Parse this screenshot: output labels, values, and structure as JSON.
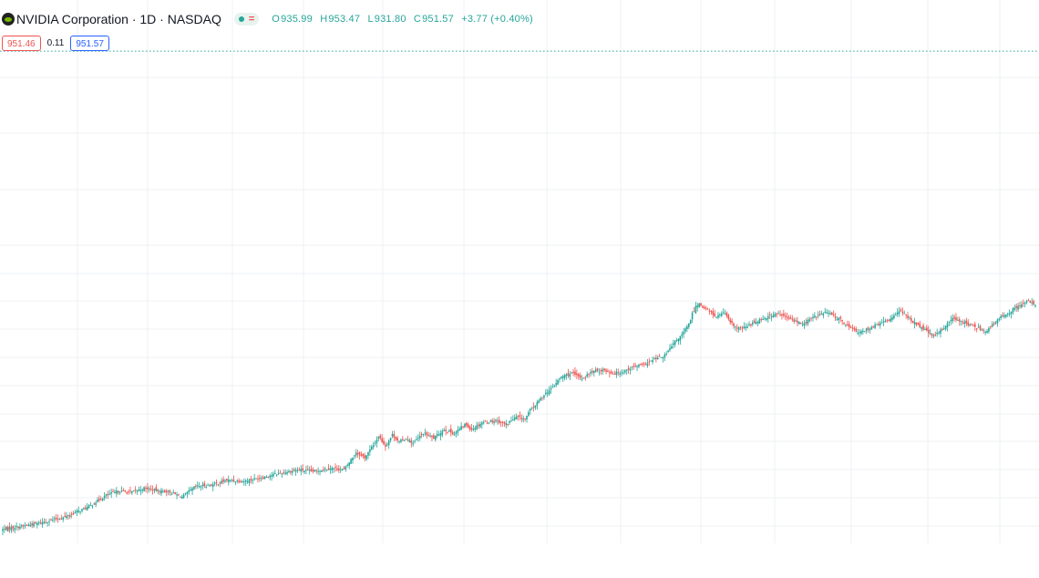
{
  "header": {
    "symbol_title": "NVIDIA Corporation · 1D · NASDAQ",
    "logo_icon": "nvidia-logo-icon",
    "status_icons": [
      "market-open-dot-icon",
      "equals-icon"
    ],
    "status_eq_glyph": "=",
    "ohlc": {
      "open_key": "O",
      "open": "935.99",
      "high_key": "H",
      "high": "953.47",
      "low_key": "L",
      "low": "931.80",
      "close_key": "C",
      "close": "951.57",
      "change": "+3.77 (+0.40%)"
    },
    "sell_price": "951.46",
    "spread": "0.11",
    "buy_price": "951.57"
  },
  "colors": {
    "up": "#26a69a",
    "down": "#ef5350",
    "grid": "#eef0f3",
    "price_line": "#26a69a"
  },
  "chart_data": {
    "type": "candlestick",
    "title": "",
    "xlabel": "",
    "ylabel": "",
    "grid": true,
    "ylim": [
      390,
      1010
    ],
    "last_close": 951.57,
    "close_path": [
      [
        0,
        406
      ],
      [
        18,
        412
      ],
      [
        36,
        420
      ],
      [
        50,
        432
      ],
      [
        60,
        445
      ],
      [
        68,
        450
      ],
      [
        74,
        448
      ],
      [
        82,
        453
      ],
      [
        90,
        450
      ],
      [
        96,
        449
      ],
      [
        104,
        443
      ],
      [
        112,
        455
      ],
      [
        122,
        457
      ],
      [
        130,
        462
      ],
      [
        140,
        461
      ],
      [
        152,
        466
      ],
      [
        160,
        470
      ],
      [
        172,
        474
      ],
      [
        180,
        472
      ],
      [
        190,
        476
      ],
      [
        198,
        474
      ],
      [
        205,
        494
      ],
      [
        210,
        488
      ],
      [
        215,
        502
      ],
      [
        218,
        512
      ],
      [
        222,
        501
      ],
      [
        226,
        514
      ],
      [
        230,
        506
      ],
      [
        234,
        510
      ],
      [
        238,
        504
      ],
      [
        244,
        516
      ],
      [
        250,
        510
      ],
      [
        256,
        520
      ],
      [
        262,
        515
      ],
      [
        268,
        526
      ],
      [
        272,
        520
      ],
      [
        278,
        528
      ],
      [
        286,
        530
      ],
      [
        292,
        526
      ],
      [
        298,
        534
      ],
      [
        303,
        532
      ],
      [
        306,
        542
      ],
      [
        310,
        550
      ],
      [
        314,
        560
      ],
      [
        318,
        566
      ],
      [
        324,
        580
      ],
      [
        330,
        584
      ],
      [
        336,
        578
      ],
      [
        342,
        586
      ],
      [
        348,
        588
      ],
      [
        354,
        584
      ],
      [
        360,
        586
      ],
      [
        366,
        592
      ],
      [
        372,
        594
      ],
      [
        378,
        600
      ],
      [
        384,
        604
      ],
      [
        390,
        620
      ],
      [
        394,
        628
      ],
      [
        398,
        640
      ],
      [
        400,
        652
      ],
      [
        402,
        660
      ],
      [
        404,
        664
      ],
      [
        407,
        658
      ],
      [
        410,
        655
      ],
      [
        414,
        648
      ],
      [
        418,
        654
      ],
      [
        422,
        642
      ],
      [
        426,
        635
      ],
      [
        430,
        636
      ],
      [
        434,
        640
      ],
      [
        440,
        646
      ],
      [
        446,
        650
      ],
      [
        450,
        652
      ],
      [
        454,
        648
      ],
      [
        458,
        645
      ],
      [
        464,
        640
      ],
      [
        470,
        648
      ],
      [
        478,
        654
      ],
      [
        486,
        645
      ],
      [
        492,
        636
      ],
      [
        497,
        630
      ],
      [
        503,
        636
      ],
      [
        508,
        640
      ],
      [
        514,
        645
      ],
      [
        520,
        656
      ],
      [
        525,
        648
      ],
      [
        530,
        640
      ],
      [
        536,
        632
      ],
      [
        540,
        626
      ],
      [
        546,
        636
      ],
      [
        550,
        646
      ],
      [
        556,
        644
      ],
      [
        560,
        640
      ],
      [
        566,
        636
      ],
      [
        570,
        632
      ],
      [
        576,
        642
      ],
      [
        580,
        650
      ],
      [
        584,
        654
      ],
      [
        590,
        662
      ],
      [
        595,
        666
      ],
      [
        599,
        662
      ]
    ]
  }
}
